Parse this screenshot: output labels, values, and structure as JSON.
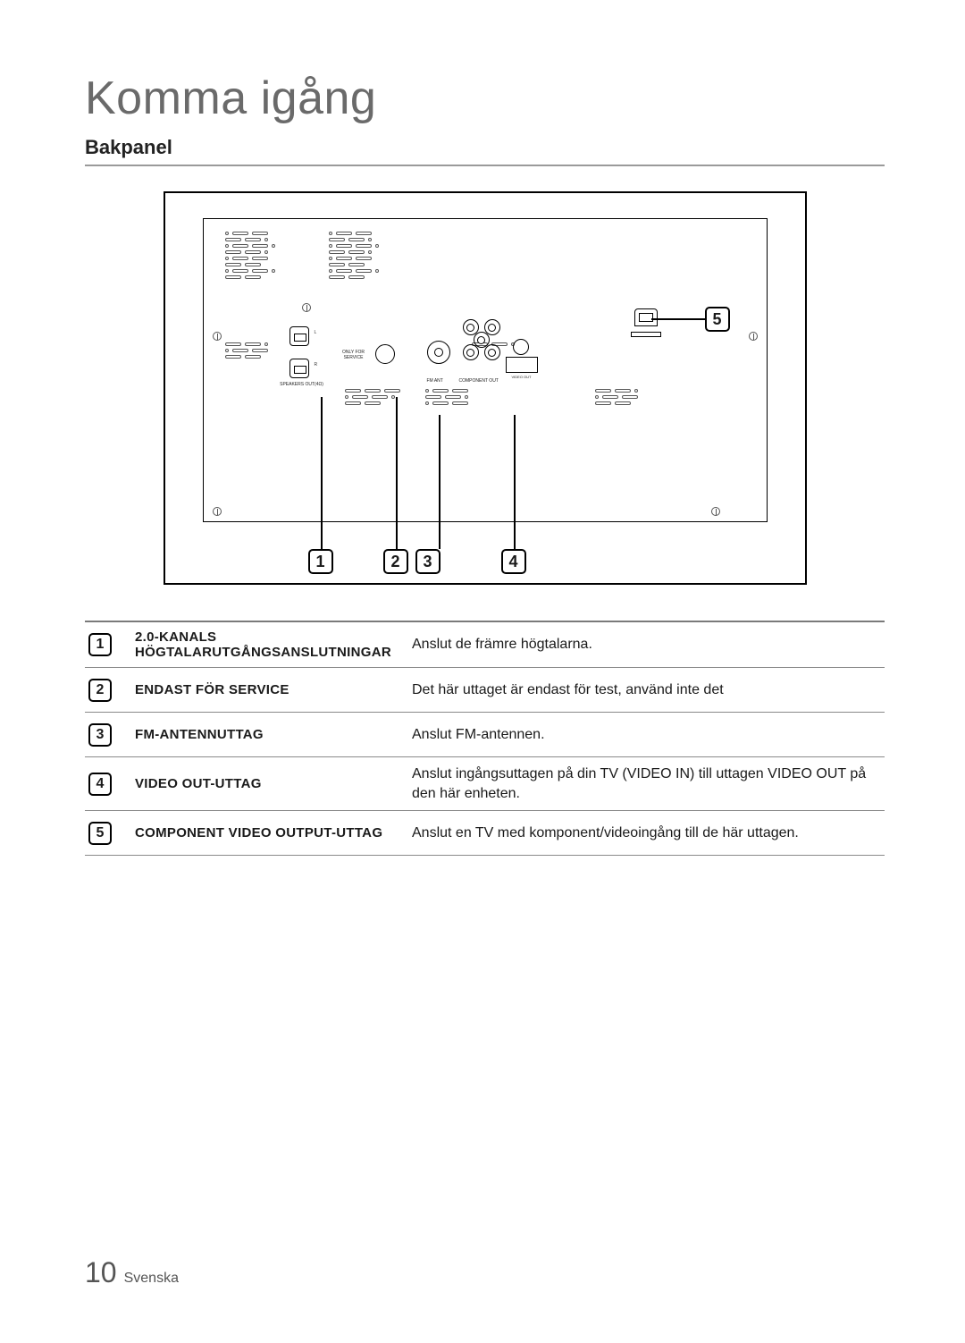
{
  "title": "Komma igång",
  "subtitle": "Bakpanel",
  "diagram": {
    "labels": {
      "speakers": "SPEAKERS OUT(4Ω)",
      "L": "L",
      "R": "R",
      "service": "ONLY FOR SERVICE",
      "fm": "FM ANT",
      "component": "COMPONENT OUT",
      "video": "VIDEO OUT"
    },
    "callouts": [
      "1",
      "2",
      "3",
      "4",
      "5"
    ]
  },
  "table": {
    "rows": [
      {
        "num": "1",
        "label": "2.0-KANALS HÖGTALARUTGÅNGSANSLUTNINGAR",
        "desc": "Anslut de främre högtalarna."
      },
      {
        "num": "2",
        "label": "ENDAST FÖR SERVICE",
        "desc": "Det här uttaget är endast för test, använd inte det"
      },
      {
        "num": "3",
        "label": "FM-ANTENNUTTAG",
        "desc": "Anslut FM-antennen."
      },
      {
        "num": "4",
        "label": "VIDEO OUT-UTTAG",
        "desc": "Anslut ingångsuttagen på din TV (VIDEO IN) till uttagen VIDEO OUT på den här enheten."
      },
      {
        "num": "5",
        "label": "COMPONENT VIDEO OUTPUT-UTTAG",
        "desc": "Anslut en TV med komponent/videoingång till de här uttagen."
      }
    ]
  },
  "footer": {
    "page": "10",
    "lang": "Svenska"
  }
}
